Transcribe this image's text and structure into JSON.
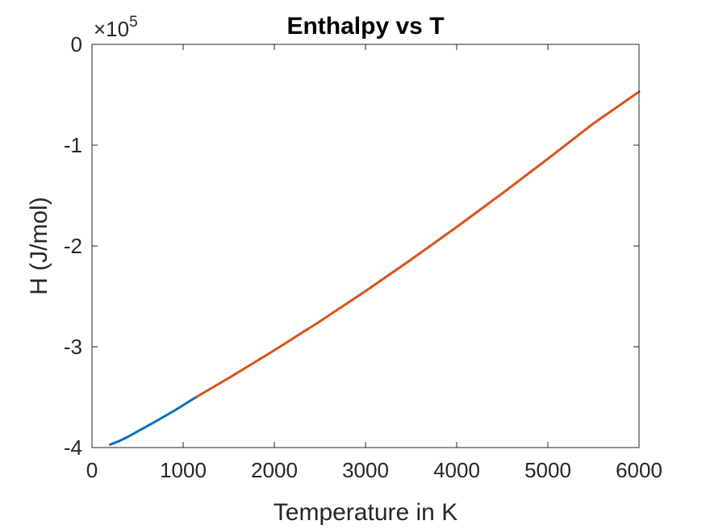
{
  "chart_data": {
    "type": "line",
    "title": "Enthalpy vs T",
    "xlabel": "Temperature in K",
    "ylabel": "H (J/mol)",
    "xlim": [
      0,
      6000
    ],
    "ylim": [
      -400000,
      0
    ],
    "xticks": [
      0,
      1000,
      2000,
      3000,
      4000,
      5000,
      6000
    ],
    "xtick_labels": [
      "0",
      "1000",
      "2000",
      "3000",
      "4000",
      "5000",
      "6000"
    ],
    "yticks": [
      -400000,
      -300000,
      -200000,
      -100000,
      0
    ],
    "ytick_labels": [
      "-4",
      "-3",
      "-2",
      "-1",
      "0"
    ],
    "y_exponent_label": "×10",
    "y_exponent": "5",
    "grid": false,
    "legend": "none",
    "series": [
      {
        "color": "#0072BD",
        "x": [
          200,
          300,
          400,
          500,
          600,
          700,
          800,
          900,
          1000,
          1100,
          1150
        ],
        "y": [
          -397000,
          -393500,
          -389000,
          -384000,
          -379000,
          -374000,
          -368800,
          -363500,
          -358000,
          -352300,
          -349500
        ]
      },
      {
        "color": "#D95319",
        "x": [
          1150,
          1500,
          2000,
          2500,
          3000,
          3500,
          4000,
          4500,
          5000,
          5500,
          6000
        ],
        "y": [
          -349500,
          -331000,
          -303500,
          -274800,
          -244800,
          -213500,
          -181200,
          -147800,
          -113500,
          -78500,
          -47000
        ]
      }
    ]
  }
}
